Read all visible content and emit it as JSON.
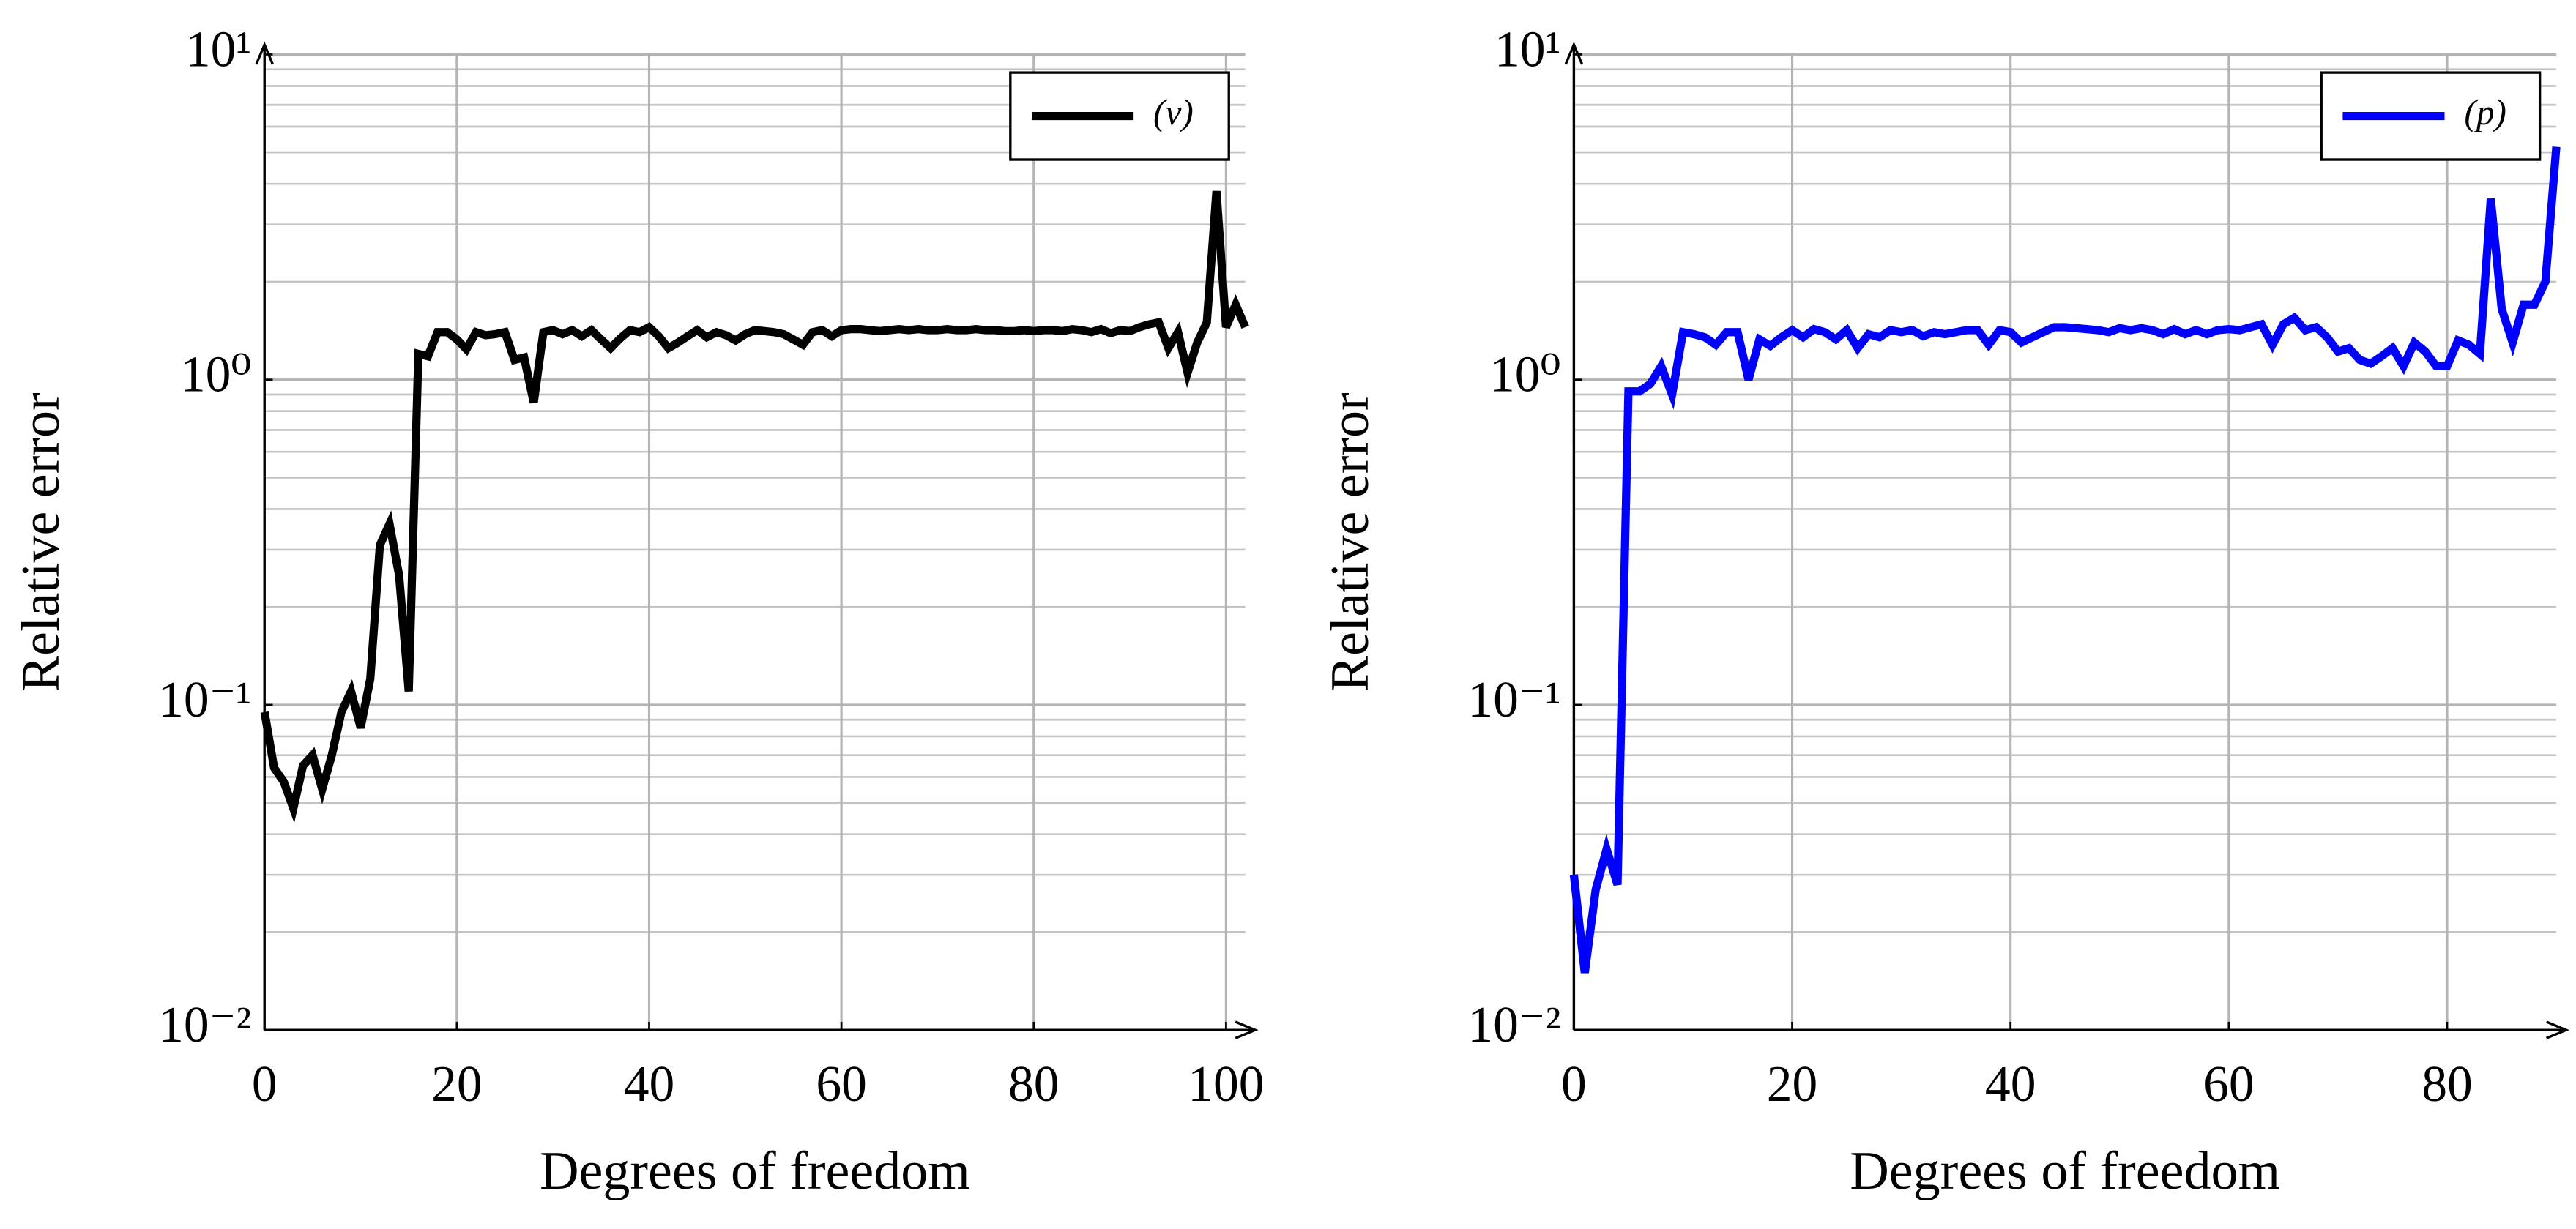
{
  "chart_data": [
    {
      "type": "line",
      "xlabel": "Degrees of freedom",
      "ylabel": "Relative error",
      "log_y": true,
      "grid": true,
      "minor_grid": true,
      "legend": "upper right",
      "xlim": [
        0,
        102
      ],
      "ylim": [
        0.01,
        10
      ],
      "xticks": [
        0,
        20,
        40,
        60,
        80,
        100
      ],
      "yticks": [
        {
          "value": 0.01,
          "label": "10⁻²"
        },
        {
          "value": 0.1,
          "label": "10⁻¹"
        },
        {
          "value": 1,
          "label": "10⁰"
        },
        {
          "value": 10,
          "label": "10¹"
        }
      ],
      "x": [
        0,
        1,
        2,
        3,
        4,
        5,
        6,
        7,
        8,
        9,
        10,
        11,
        12,
        13,
        14,
        15,
        16,
        17,
        18,
        19,
        20,
        21,
        22,
        23,
        24,
        25,
        26,
        27,
        28,
        29,
        30,
        31,
        32,
        33,
        34,
        35,
        36,
        37,
        38,
        39,
        40,
        41,
        42,
        43,
        44,
        45,
        46,
        47,
        48,
        49,
        50,
        51,
        52,
        53,
        54,
        55,
        56,
        57,
        58,
        59,
        60,
        61,
        62,
        63,
        64,
        65,
        66,
        67,
        68,
        69,
        70,
        71,
        72,
        73,
        74,
        75,
        76,
        77,
        78,
        79,
        80,
        81,
        82,
        83,
        84,
        85,
        86,
        87,
        88,
        89,
        90,
        91,
        92,
        93,
        94,
        95,
        96,
        97,
        98,
        99,
        100,
        101,
        102
      ],
      "series": [
        {
          "name": "(v)",
          "color": "#000000",
          "values": [
            0.095,
            0.064,
            0.058,
            0.048,
            0.065,
            0.07,
            0.055,
            0.07,
            0.095,
            0.11,
            0.085,
            0.12,
            0.31,
            0.36,
            0.25,
            0.11,
            1.2,
            1.18,
            1.4,
            1.4,
            1.33,
            1.24,
            1.4,
            1.37,
            1.38,
            1.4,
            1.15,
            1.17,
            0.85,
            1.4,
            1.42,
            1.38,
            1.42,
            1.36,
            1.42,
            1.33,
            1.25,
            1.34,
            1.42,
            1.4,
            1.45,
            1.36,
            1.25,
            1.3,
            1.36,
            1.42,
            1.35,
            1.4,
            1.37,
            1.32,
            1.38,
            1.42,
            1.41,
            1.4,
            1.38,
            1.33,
            1.28,
            1.4,
            1.42,
            1.36,
            1.42,
            1.43,
            1.43,
            1.42,
            1.41,
            1.42,
            1.43,
            1.42,
            1.43,
            1.42,
            1.42,
            1.43,
            1.42,
            1.42,
            1.43,
            1.42,
            1.42,
            1.41,
            1.41,
            1.42,
            1.41,
            1.42,
            1.42,
            1.41,
            1.43,
            1.42,
            1.4,
            1.43,
            1.39,
            1.42,
            1.41,
            1.45,
            1.48,
            1.5,
            1.25,
            1.4,
            1.05,
            1.3,
            1.5,
            3.8,
            1.45,
            1.7,
            1.45
          ]
        }
      ]
    },
    {
      "type": "line",
      "xlabel": "Degrees of freedom",
      "ylabel": "Relative error",
      "log_y": true,
      "grid": true,
      "minor_grid": true,
      "legend": "upper right",
      "xlim": [
        0,
        90
      ],
      "ylim": [
        0.01,
        10
      ],
      "xticks": [
        0,
        20,
        40,
        60,
        80
      ],
      "yticks": [
        {
          "value": 0.01,
          "label": "10⁻²"
        },
        {
          "value": 0.1,
          "label": "10⁻¹"
        },
        {
          "value": 1,
          "label": "10⁰"
        },
        {
          "value": 10,
          "label": "10¹"
        }
      ],
      "x": [
        0,
        1,
        2,
        3,
        4,
        5,
        6,
        7,
        8,
        9,
        10,
        11,
        12,
        13,
        14,
        15,
        16,
        17,
        18,
        19,
        20,
        21,
        22,
        23,
        24,
        25,
        26,
        27,
        28,
        29,
        30,
        31,
        32,
        33,
        34,
        35,
        36,
        37,
        38,
        39,
        40,
        41,
        42,
        43,
        44,
        45,
        46,
        47,
        48,
        49,
        50,
        51,
        52,
        53,
        54,
        55,
        56,
        57,
        58,
        59,
        60,
        61,
        62,
        63,
        64,
        65,
        66,
        67,
        68,
        69,
        70,
        71,
        72,
        73,
        74,
        75,
        76,
        77,
        78,
        79,
        80,
        81,
        82,
        83,
        84,
        85,
        86,
        87,
        88,
        89,
        90
      ],
      "series": [
        {
          "name": "(p)",
          "color": "#0000ff",
          "values": [
            0.03,
            0.015,
            0.027,
            0.036,
            0.028,
            0.92,
            0.92,
            0.97,
            1.1,
            0.9,
            1.4,
            1.38,
            1.35,
            1.28,
            1.4,
            1.4,
            1.0,
            1.33,
            1.27,
            1.35,
            1.42,
            1.35,
            1.43,
            1.4,
            1.33,
            1.42,
            1.25,
            1.38,
            1.35,
            1.42,
            1.4,
            1.42,
            1.36,
            1.4,
            1.38,
            1.4,
            1.42,
            1.42,
            1.28,
            1.42,
            1.4,
            1.3,
            1.35,
            1.4,
            1.45,
            1.45,
            1.44,
            1.43,
            1.42,
            1.4,
            1.44,
            1.42,
            1.44,
            1.42,
            1.38,
            1.43,
            1.38,
            1.42,
            1.38,
            1.42,
            1.43,
            1.42,
            1.45,
            1.48,
            1.28,
            1.48,
            1.55,
            1.42,
            1.45,
            1.35,
            1.22,
            1.25,
            1.15,
            1.12,
            1.18,
            1.25,
            1.1,
            1.3,
            1.22,
            1.1,
            1.1,
            1.32,
            1.28,
            1.2,
            3.6,
            1.65,
            1.3,
            1.7,
            1.7,
            2.0,
            5.2
          ]
        }
      ]
    }
  ]
}
